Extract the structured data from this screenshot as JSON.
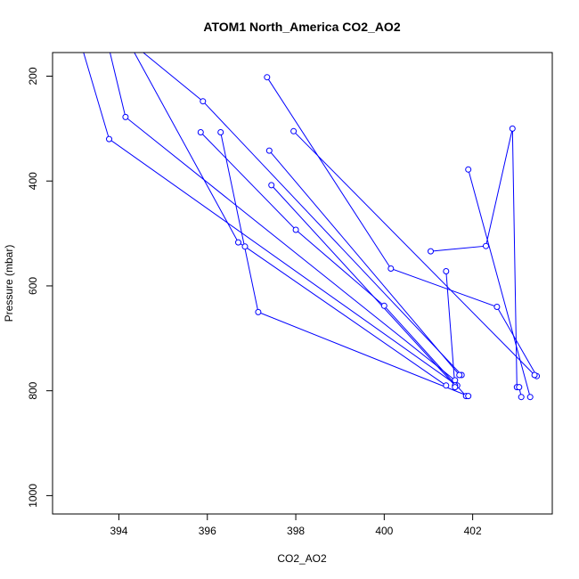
{
  "chart_data": {
    "type": "line",
    "title": "ATOM1 North_America CO2_AO2",
    "xlabel": "CO2_AO2",
    "ylabel": "Pressure (mbar)",
    "xlim": [
      392.5,
      403.8
    ],
    "ylim": [
      1035,
      155
    ],
    "y_reversed": true,
    "xticks": [
      394,
      396,
      398,
      400,
      402
    ],
    "yticks": [
      200,
      400,
      600,
      800,
      1000
    ],
    "grid": false,
    "series": [
      {
        "color": "#0000ff",
        "marker": "open-circle",
        "points": [
          {
            "x": 393.2,
            "y": 155,
            "marker": false
          },
          {
            "x": 393.78,
            "y": 320
          },
          {
            "x": 401.65,
            "y": 790
          }
        ]
      },
      {
        "color": "#0000ff",
        "marker": "open-circle",
        "points": [
          {
            "x": 393.8,
            "y": 155,
            "marker": false
          },
          {
            "x": 394.15,
            "y": 278
          },
          {
            "x": 401.6,
            "y": 780
          }
        ]
      },
      {
        "color": "#0000ff",
        "marker": "open-circle",
        "points": [
          {
            "x": 394.35,
            "y": 155,
            "marker": false
          },
          {
            "x": 396.7,
            "y": 517
          },
          {
            "x": 396.85,
            "y": 525
          },
          {
            "x": 401.4,
            "y": 790
          }
        ]
      },
      {
        "color": "#0000ff",
        "marker": "open-circle",
        "points": [
          {
            "x": 394.55,
            "y": 155,
            "marker": false
          },
          {
            "x": 395.9,
            "y": 248
          },
          {
            "x": 401.75,
            "y": 770
          }
        ]
      },
      {
        "color": "#0000ff",
        "marker": "open-circle",
        "points": [
          {
            "x": 395.85,
            "y": 307
          },
          {
            "x": 398.0,
            "y": 493
          },
          {
            "x": 400.0,
            "y": 638
          },
          {
            "x": 401.85,
            "y": 810
          }
        ]
      },
      {
        "color": "#0000ff",
        "marker": "open-circle",
        "points": [
          {
            "x": 396.3,
            "y": 307
          },
          {
            "x": 397.15,
            "y": 650
          },
          {
            "x": 401.9,
            "y": 810
          }
        ]
      },
      {
        "color": "#0000ff",
        "marker": "open-circle",
        "points": [
          {
            "x": 397.35,
            "y": 202
          },
          {
            "x": 400.15,
            "y": 567
          },
          {
            "x": 402.55,
            "y": 640
          },
          {
            "x": 403.45,
            "y": 772
          }
        ]
      },
      {
        "color": "#0000ff",
        "marker": "open-circle",
        "points": [
          {
            "x": 397.4,
            "y": 342
          },
          {
            "x": 401.7,
            "y": 770
          }
        ]
      },
      {
        "color": "#0000ff",
        "marker": "open-circle",
        "points": [
          {
            "x": 397.45,
            "y": 408
          },
          {
            "x": 401.6,
            "y": 790
          }
        ]
      },
      {
        "color": "#0000ff",
        "marker": "open-circle",
        "points": [
          {
            "x": 397.95,
            "y": 305
          },
          {
            "x": 403.4,
            "y": 770
          }
        ]
      },
      {
        "color": "#0000ff",
        "marker": "open-circle",
        "points": [
          {
            "x": 401.05,
            "y": 534
          },
          {
            "x": 402.3,
            "y": 524
          },
          {
            "x": 402.9,
            "y": 300
          },
          {
            "x": 403.0,
            "y": 793
          }
        ]
      },
      {
        "color": "#0000ff",
        "marker": "open-circle",
        "points": [
          {
            "x": 401.9,
            "y": 378
          },
          {
            "x": 403.3,
            "y": 812
          }
        ]
      },
      {
        "color": "#0000ff",
        "marker": "open-circle",
        "points": [
          {
            "x": 401.4,
            "y": 572
          },
          {
            "x": 401.6,
            "y": 793
          }
        ]
      },
      {
        "color": "#0000ff",
        "marker": "open-circle",
        "points": [
          {
            "x": 403.05,
            "y": 793
          },
          {
            "x": 403.1,
            "y": 812
          }
        ]
      }
    ]
  }
}
